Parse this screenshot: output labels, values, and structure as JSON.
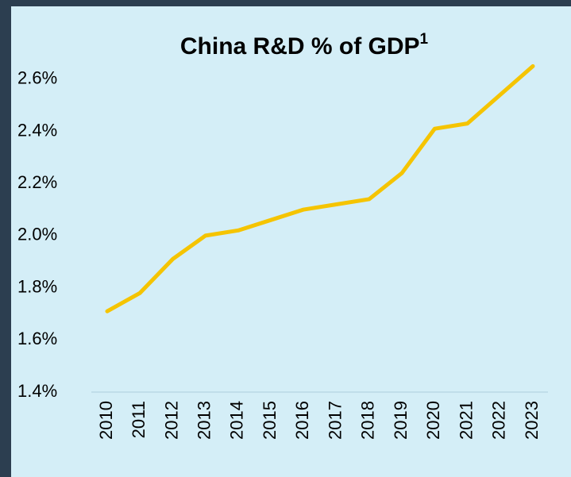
{
  "chart_data": {
    "type": "line",
    "title": "China R&D % of GDP",
    "title_superscript": "1",
    "categories": [
      "2010",
      "2011",
      "2012",
      "2013",
      "2014",
      "2015",
      "2016",
      "2017",
      "2018",
      "2019",
      "2020",
      "2021",
      "2022",
      "2023"
    ],
    "values": [
      1.71,
      1.78,
      1.91,
      2.0,
      2.02,
      2.06,
      2.1,
      2.12,
      2.14,
      2.24,
      2.41,
      2.43,
      2.54,
      2.65
    ],
    "color": "#f5c400",
    "ylim": [
      1.4,
      2.7
    ],
    "yticks": [
      {
        "value": 1.4,
        "label": "1.4%"
      },
      {
        "value": 1.6,
        "label": "1.6%"
      },
      {
        "value": 1.8,
        "label": "1.8%"
      },
      {
        "value": 2.0,
        "label": "2.0%"
      },
      {
        "value": 2.2,
        "label": "2.2%"
      },
      {
        "value": 2.4,
        "label": "2.4%"
      },
      {
        "value": 2.6,
        "label": "2.6%"
      }
    ],
    "grid": false
  }
}
